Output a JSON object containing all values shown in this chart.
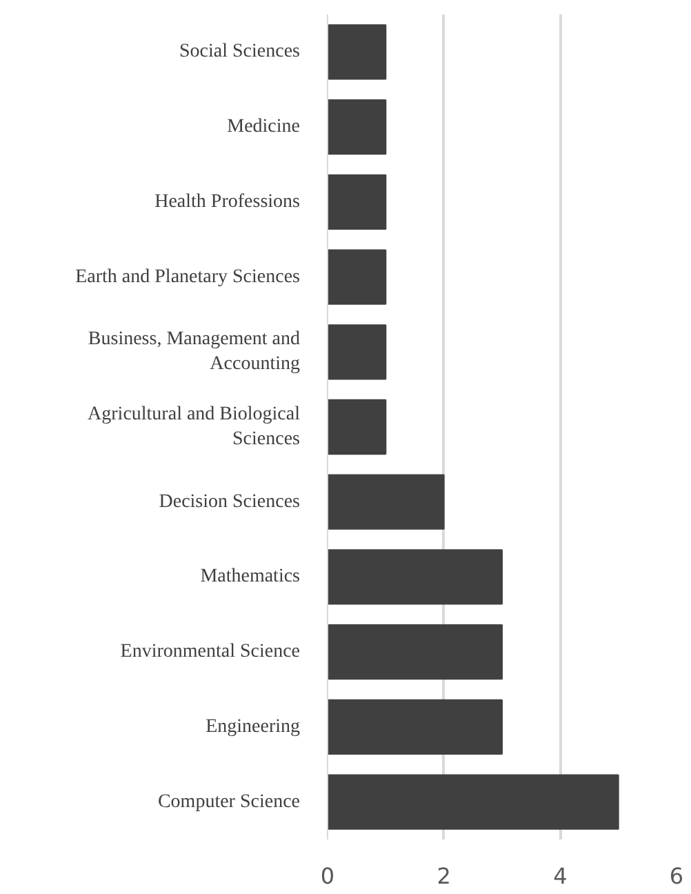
{
  "chart_data": {
    "type": "bar",
    "orientation": "horizontal",
    "categories": [
      "Social Sciences",
      "Medicine",
      "Health Professions",
      "Earth and Planetary Sciences",
      "Business, Management and\nAccounting",
      "Agricultural and Biological\nSciences",
      "Decision Sciences",
      "Mathematics",
      "Environmental Science",
      "Engineering",
      "Computer Science"
    ],
    "values": [
      1,
      1,
      1,
      1,
      1,
      1,
      2,
      3,
      3,
      3,
      5
    ],
    "color": "#404040",
    "xlim": [
      0,
      6
    ],
    "xticks": [
      0,
      2,
      4,
      6
    ],
    "grid": "x"
  }
}
